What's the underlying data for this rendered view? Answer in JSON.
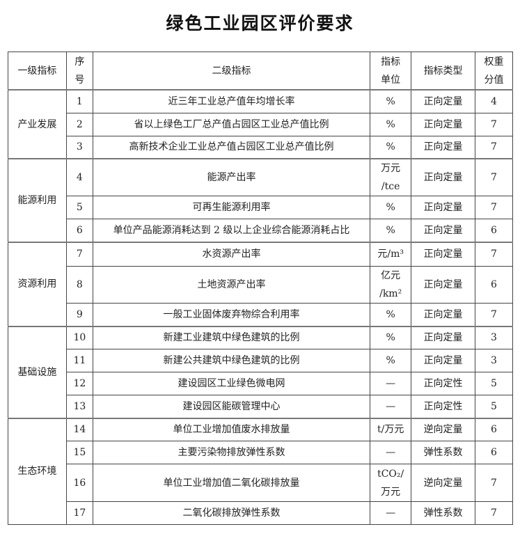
{
  "title": "绿色工业园区评价要求",
  "headers": [
    "一级指标",
    "序\n号",
    "二级指标",
    "指标\n单位",
    "指标类型",
    "权重\n分值"
  ],
  "groups": [
    {
      "name": "产业发展",
      "rows": [
        {
          "no": "1",
          "indicator": "近三年工业总产值年均增长率",
          "unit": "%",
          "type": "正向定量",
          "weight": "4"
        },
        {
          "no": "2",
          "indicator": "省以上绿色工厂总产值占园区工业总产值比例",
          "unit": "%",
          "type": "正向定量",
          "weight": "7"
        },
        {
          "no": "3",
          "indicator": "高新技术企业工业总产值占园区工业总产值比例",
          "unit": "%",
          "type": "正向定量",
          "weight": "7"
        }
      ]
    },
    {
      "name": "能源利用",
      "rows": [
        {
          "no": "4",
          "indicator": "能源产出率",
          "unit": "万元\n/tce",
          "type": "正向定量",
          "weight": "7"
        },
        {
          "no": "5",
          "indicator": "可再生能源利用率",
          "unit": "%",
          "type": "正向定量",
          "weight": "7"
        },
        {
          "no": "6",
          "indicator": "单位产品能源消耗达到 2 级以上企业综合能源消耗占比",
          "unit": "%",
          "type": "正向定量",
          "weight": "6"
        }
      ]
    },
    {
      "name": "资源利用",
      "rows": [
        {
          "no": "7",
          "indicator": "水资源产出率",
          "unit": "元/m³",
          "type": "正向定量",
          "weight": "7"
        },
        {
          "no": "8",
          "indicator": "土地资源产出率",
          "unit": "亿元\n/km²",
          "type": "正向定量",
          "weight": "6"
        },
        {
          "no": "9",
          "indicator": "一般工业固体废弃物综合利用率",
          "unit": "%",
          "type": "正向定量",
          "weight": "7"
        }
      ]
    },
    {
      "name": "基础设施",
      "rows": [
        {
          "no": "10",
          "indicator": "新建工业建筑中绿色建筑的比例",
          "unit": "%",
          "type": "正向定量",
          "weight": "3"
        },
        {
          "no": "11",
          "indicator": "新建公共建筑中绿色建筑的比例",
          "unit": "%",
          "type": "正向定量",
          "weight": "3"
        },
        {
          "no": "12",
          "indicator": "建设园区工业绿色微电网",
          "unit": "—",
          "type": "正向定性",
          "weight": "5"
        },
        {
          "no": "13",
          "indicator": "建设园区能碳管理中心",
          "unit": "—",
          "type": "正向定性",
          "weight": "5"
        }
      ]
    },
    {
      "name": "生态环境",
      "rows": [
        {
          "no": "14",
          "indicator": "单位工业增加值废水排放量",
          "unit": "t/万元",
          "type": "逆向定量",
          "weight": "6"
        },
        {
          "no": "15",
          "indicator": "主要污染物排放弹性系数",
          "unit": "—",
          "type": "弹性系数",
          "weight": "6"
        },
        {
          "no": "16",
          "indicator": "单位工业增加值二氧化碳排放量",
          "unit": "tCO₂/\n万元",
          "type": "逆向定量",
          "weight": "7"
        },
        {
          "no": "17",
          "indicator": "二氧化碳排放弹性系数",
          "unit": "—",
          "type": "弹性系数",
          "weight": "7"
        }
      ]
    }
  ]
}
